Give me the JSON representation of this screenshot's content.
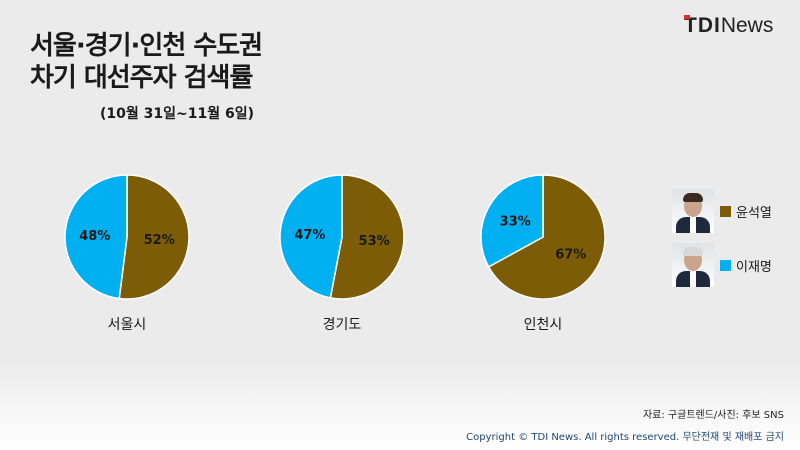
{
  "title_line1": "서울·경기·인천 수도권",
  "title_line2": "차기 대선주자 검색률",
  "subtitle": "(10월 31일~11월 6일)",
  "logo": {
    "tdi": "TDI",
    "news": "News"
  },
  "colors": {
    "yoon": "#7d5c07",
    "lee": "#00b0f0",
    "logo_accent": "#e0302a"
  },
  "legend": [
    {
      "name": "윤석열",
      "color": "#7d5c07",
      "photo": "yoon-photo"
    },
    {
      "name": "이재명",
      "color": "#00b0f0",
      "photo": "lee-photo"
    }
  ],
  "chart_data": [
    {
      "type": "pie",
      "title": "서울시",
      "labels": [
        "윤석열",
        "이재명"
      ],
      "values": [
        52,
        48
      ],
      "value_labels": [
        "52%",
        "48%"
      ]
    },
    {
      "type": "pie",
      "title": "경기도",
      "labels": [
        "윤석열",
        "이재명"
      ],
      "values": [
        53,
        47
      ],
      "value_labels": [
        "53%",
        "47%"
      ]
    },
    {
      "type": "pie",
      "title": "인천시",
      "labels": [
        "윤석열",
        "이재명"
      ],
      "values": [
        67,
        33
      ],
      "value_labels": [
        "67%",
        "33%"
      ]
    }
  ],
  "source": "자료: 구글트렌드/사진: 후보 SNS",
  "copyright": "Copyright © TDI News. All rights reserved. 무단전재 및 재배포 금지"
}
